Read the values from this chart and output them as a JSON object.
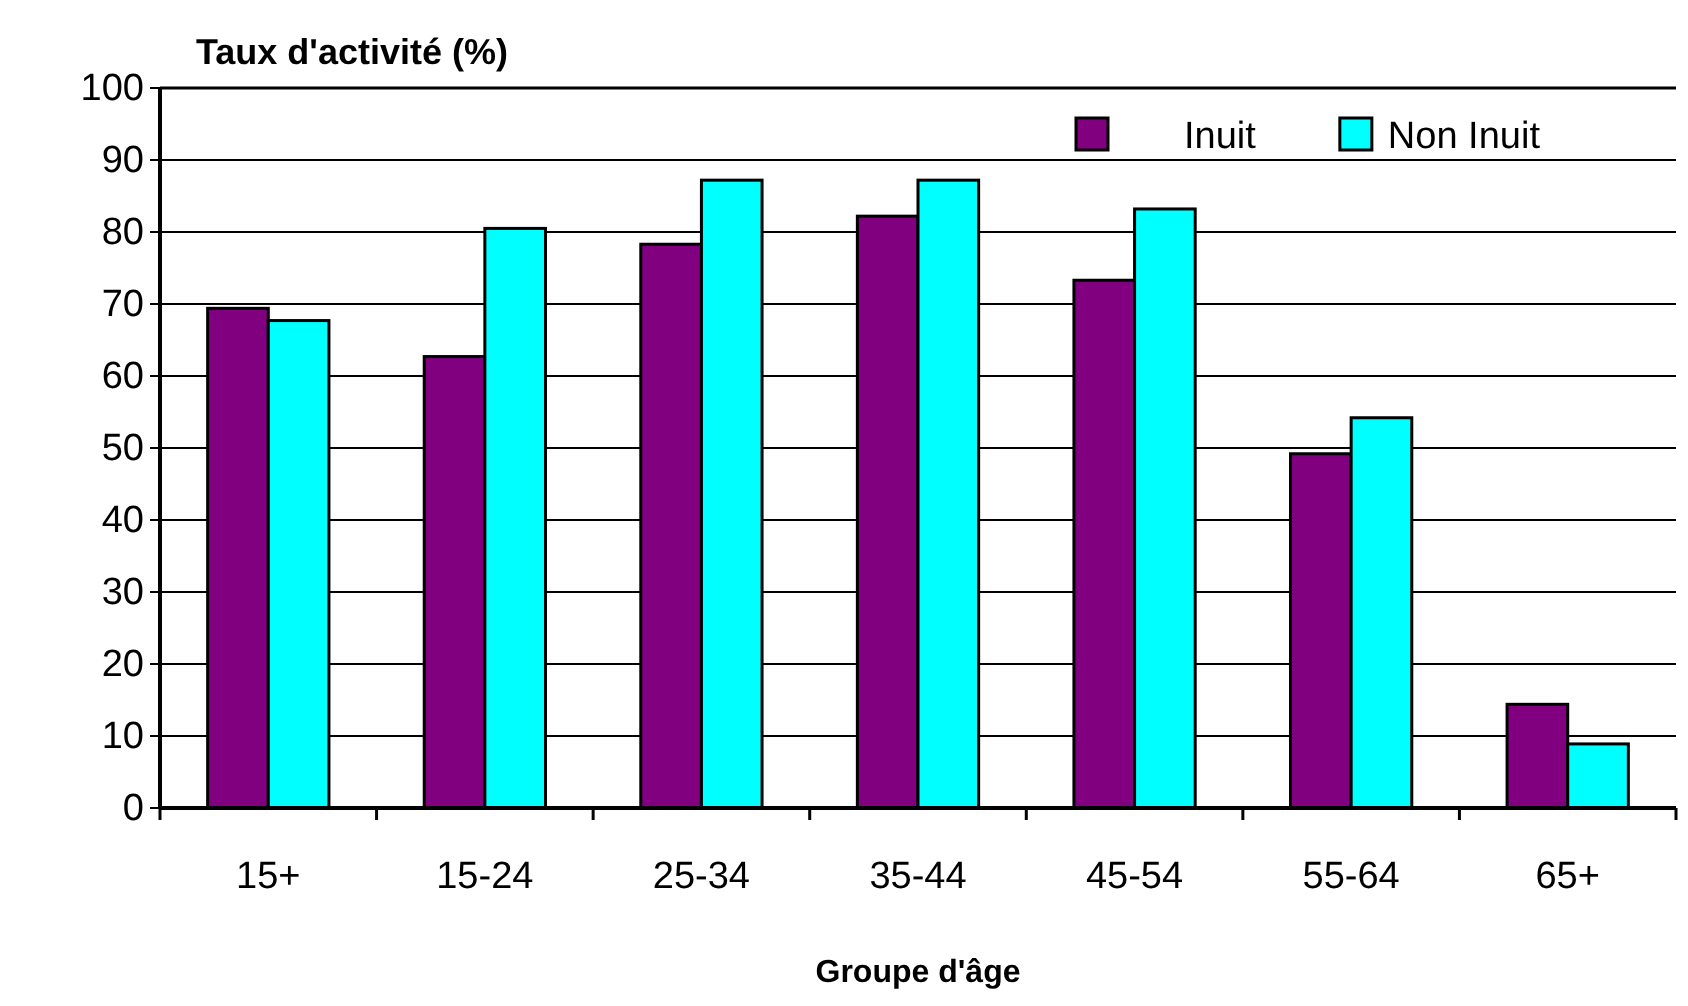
{
  "chart_data": {
    "type": "bar",
    "title": "Taux d'activité (%)",
    "xlabel": "Groupe d'âge",
    "categories": [
      "15+",
      "15-24",
      "25-34",
      "35-44",
      "45-54",
      "55-64",
      "65+"
    ],
    "series": [
      {
        "name": "Inuit",
        "color": "#800080",
        "values": [
          69.4,
          62.7,
          78.3,
          82.2,
          73.3,
          49.2,
          14.4
        ]
      },
      {
        "name": "Non Inuit",
        "color": "#00ffff",
        "values": [
          67.7,
          80.5,
          87.2,
          87.2,
          83.2,
          54.2,
          8.9
        ]
      }
    ],
    "ylim": [
      0,
      100
    ],
    "yticks": [
      0,
      10,
      20,
      30,
      40,
      50,
      60,
      70,
      80,
      90,
      100
    ],
    "grid": "y",
    "legend": "top right"
  }
}
